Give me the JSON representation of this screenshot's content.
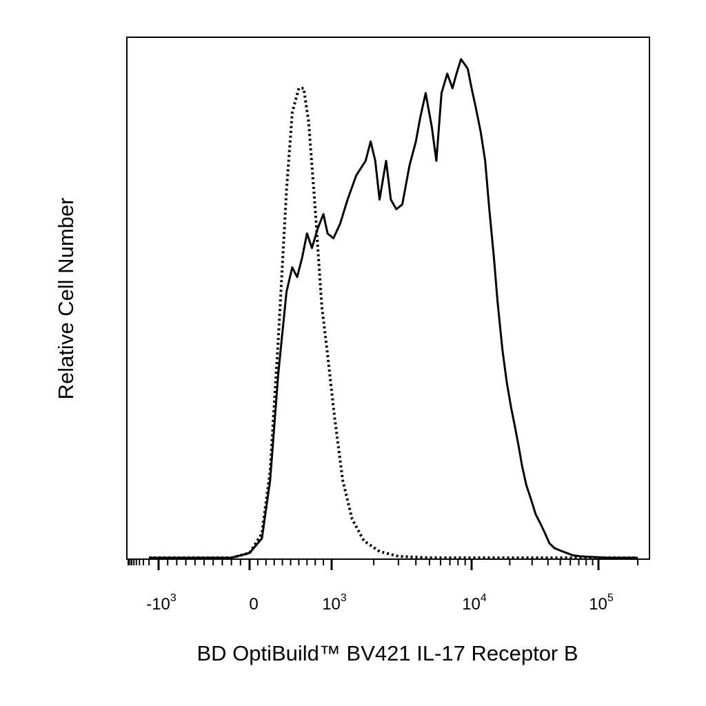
{
  "chart_data": {
    "type": "line",
    "title": "",
    "xlabel": "BD OptiBuild™ BV421 IL-17 Receptor B",
    "ylabel": "Relative Cell Number",
    "x_scale": "biexponential",
    "xlim": [
      -2000,
      200000
    ],
    "ylim": [
      0,
      1
    ],
    "grid": false,
    "x_tick_labels": [
      {
        "value": -1000,
        "base": "-10",
        "exp": "3"
      },
      {
        "value": 0,
        "base": "0",
        "exp": ""
      },
      {
        "value": 1000,
        "base": "10",
        "exp": "3"
      },
      {
        "value": 10000,
        "base": "10",
        "exp": "4"
      },
      {
        "value": 100000,
        "base": "10",
        "exp": "5"
      }
    ],
    "x_minor_ticks": [
      -2000,
      -3000,
      -4000,
      -5000,
      -6000,
      -7000,
      -8000,
      -9000,
      -100,
      -200,
      -300,
      -400,
      -500,
      -600,
      -700,
      -800,
      -900,
      100,
      200,
      300,
      400,
      500,
      600,
      700,
      800,
      900,
      2000,
      3000,
      4000,
      5000,
      6000,
      7000,
      8000,
      9000,
      20000,
      30000,
      40000,
      50000,
      60000,
      70000,
      80000,
      90000,
      200000
    ],
    "series": [
      {
        "style": "dotted",
        "x": [
          -2000,
          -600,
          -200,
          0,
          150,
          250,
          350,
          450,
          520,
          600,
          660,
          720,
          800,
          880,
          950,
          1050,
          1200,
          1400,
          1700,
          2200,
          3000,
          5000,
          10000,
          50000,
          200000
        ],
        "y": [
          0.0,
          0.0,
          0.0,
          0.01,
          0.05,
          0.18,
          0.45,
          0.76,
          0.92,
          0.97,
          0.97,
          0.9,
          0.72,
          0.52,
          0.42,
          0.29,
          0.16,
          0.08,
          0.035,
          0.013,
          0.003,
          0.0,
          0.0,
          0.0,
          0.0
        ]
      },
      {
        "style": "solid",
        "x": [
          -2000,
          -600,
          -200,
          0,
          150,
          250,
          350,
          450,
          520,
          580,
          640,
          700,
          760,
          830,
          900,
          950,
          1030,
          1150,
          1300,
          1500,
          1750,
          1900,
          2050,
          2200,
          2450,
          2650,
          2900,
          3200,
          3600,
          4000,
          4300,
          4700,
          5200,
          5600,
          6100,
          6700,
          7300,
          7800,
          8400,
          8900,
          9400,
          10000,
          10800,
          11800,
          12800,
          13800,
          15000,
          16000,
          17500,
          19000,
          20500,
          22000,
          23500,
          25000,
          27000,
          29500,
          32000,
          35000,
          38000,
          41000,
          45000,
          50000,
          56000,
          63000,
          72000,
          84000,
          100000,
          120000,
          140000,
          160000,
          175000,
          200000
        ],
        "y": [
          0.0,
          0.0,
          0.0,
          0.01,
          0.04,
          0.16,
          0.38,
          0.55,
          0.6,
          0.58,
          0.62,
          0.67,
          0.64,
          0.68,
          0.71,
          0.67,
          0.66,
          0.69,
          0.74,
          0.79,
          0.82,
          0.86,
          0.82,
          0.74,
          0.82,
          0.74,
          0.72,
          0.73,
          0.81,
          0.86,
          0.91,
          0.96,
          0.89,
          0.82,
          0.96,
          1.0,
          0.97,
          1.0,
          1.03,
          1.02,
          1.01,
          0.97,
          0.93,
          0.88,
          0.82,
          0.72,
          0.62,
          0.53,
          0.43,
          0.36,
          0.31,
          0.27,
          0.23,
          0.19,
          0.15,
          0.12,
          0.09,
          0.07,
          0.05,
          0.03,
          0.02,
          0.015,
          0.01,
          0.005,
          0.003,
          0.002,
          0.001,
          0.0,
          0.0,
          0.0,
          0.0,
          0.0
        ]
      }
    ]
  }
}
